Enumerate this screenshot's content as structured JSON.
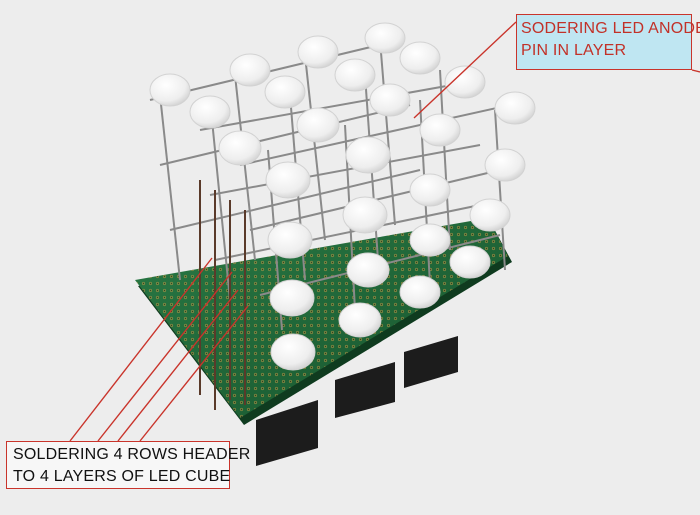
{
  "callouts": {
    "top": {
      "line1": "SODERING LED ANODE",
      "line2": "PIN IN LAYER"
    },
    "bottom": {
      "line1": "SOLDERING 4 ROWS HEADER",
      "line2": "TO 4 LAYERS OF LED CUBE"
    }
  },
  "colors": {
    "background": "#e9e9e9",
    "pcb": "#1f6b3a",
    "led": "#f4f4f4",
    "header": "#1c1c1c",
    "callout_border": "#c9342b",
    "callout_top_fill": "#bfe6f2",
    "callout_top_text": "#c23128",
    "callout_bottom_text": "#111111"
  },
  "scene": {
    "subject": "4x4x4 LED cube on perforated PCB",
    "icon": "led-cube-photo"
  }
}
